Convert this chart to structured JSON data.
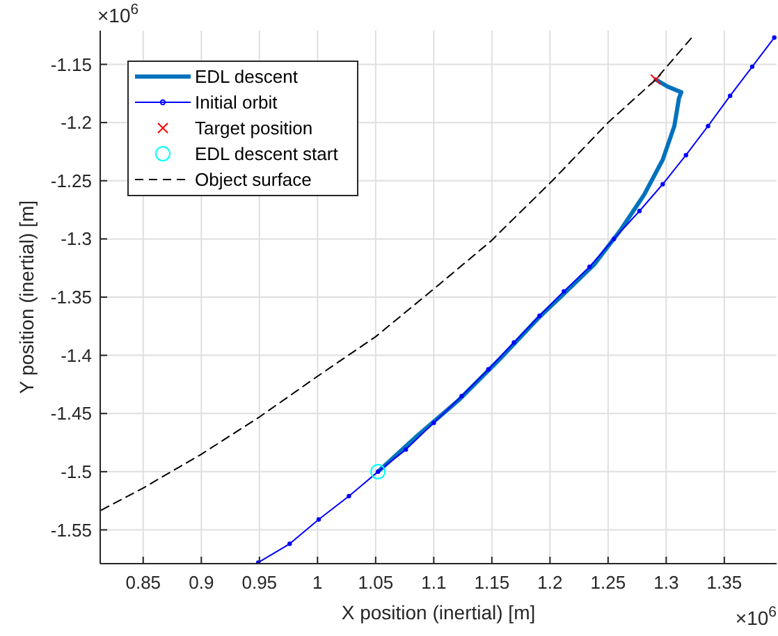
{
  "chart_data": {
    "type": "line",
    "xlabel": "X position (inertial) [m]",
    "ylabel": "Y position (inertial) [m]",
    "xlim": [
      0.813,
      1.395
    ],
    "ylim": [
      -1.579,
      -1.121
    ],
    "xticks": [
      0.85,
      0.9,
      0.95,
      1,
      1.05,
      1.1,
      1.15,
      1.2,
      1.25,
      1.3,
      1.35
    ],
    "yticks": [
      -1.55,
      -1.5,
      -1.45,
      -1.4,
      -1.35,
      -1.3,
      -1.25,
      -1.2,
      -1.15
    ],
    "grid": true,
    "legend": "top left",
    "annotations": [
      "×10$^{6}$",
      "×10$^{6}$"
    ],
    "series": [
      {
        "name": "EDL descent",
        "color": "#0072bd",
        "marker": "none",
        "line_style": "solid",
        "x": [
          1.052,
          1.086,
          1.122,
          1.157,
          1.19,
          1.212,
          1.238,
          1.261,
          1.281,
          1.297,
          1.307,
          1.311,
          1.313,
          1.301,
          1.291
        ],
        "values": [
          -1.5,
          -1.469,
          -1.438,
          -1.403,
          -1.368,
          -1.347,
          -1.322,
          -1.292,
          -1.262,
          -1.232,
          -1.203,
          -1.179,
          -1.174,
          -1.169,
          -1.163
        ]
      },
      {
        "name": "Initial orbit",
        "color": "#0000ff",
        "marker": "circle",
        "line_style": "solid",
        "x": [
          0.949,
          0.976,
          1.001,
          1.027,
          1.052,
          1.076,
          1.1,
          1.124,
          1.147,
          1.169,
          1.191,
          1.212,
          1.234,
          1.255,
          1.277,
          1.297,
          1.317,
          1.336,
          1.355,
          1.374,
          1.393
        ],
        "values": [
          -1.578,
          -1.562,
          -1.541,
          -1.521,
          -1.5,
          -1.481,
          -1.458,
          -1.435,
          -1.412,
          -1.389,
          -1.366,
          -1.345,
          -1.324,
          -1.3,
          -1.276,
          -1.253,
          -1.228,
          -1.203,
          -1.177,
          -1.152,
          -1.127
        ]
      },
      {
        "name": "Target position",
        "type": "scatter",
        "color": "#ff0000",
        "marker": "cross",
        "x": [
          1.291
        ],
        "values": [
          -1.163
        ]
      },
      {
        "name": "EDL descent start",
        "type": "scatter",
        "color": "#00ffff",
        "marker": "circle",
        "x": [
          1.052
        ],
        "values": [
          -1.5
        ]
      },
      {
        "name": "Object surface",
        "color": "#000000",
        "marker": "none",
        "line_style": "dashed",
        "x": [
          0.814,
          0.85,
          0.9,
          0.95,
          1,
          1.05,
          1.1,
          1.149,
          1.202,
          1.25,
          1.291,
          1.322
        ],
        "values": [
          -1.533,
          -1.514,
          -1.485,
          -1.453,
          -1.418,
          -1.384,
          -1.343,
          -1.302,
          -1.25,
          -1.2,
          -1.163,
          -1.127
        ]
      }
    ]
  }
}
